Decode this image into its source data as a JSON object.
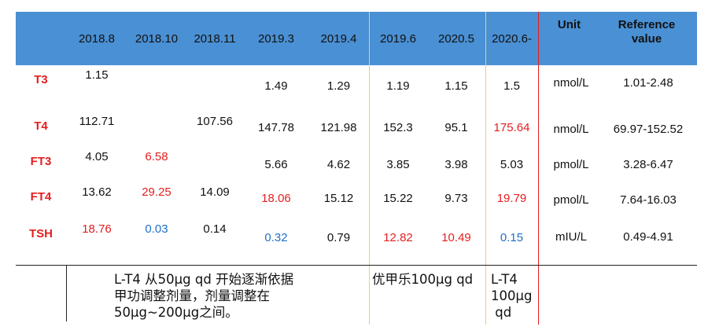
{
  "header": {
    "columns": [
      "2018.8",
      "2018.10",
      "2018.11",
      "2019.3",
      "2019.4",
      "2019.6",
      "2020.5",
      "2020.6-"
    ],
    "unit_label": "Unit",
    "reference_label": "Reference value"
  },
  "rows": [
    {
      "label": "T3",
      "values": [
        "1.15",
        "",
        "",
        "1.49",
        "1.29",
        "1.19",
        "1.15",
        "1.5"
      ],
      "unit": "nmol/L",
      "reference": "1.01-2.48"
    },
    {
      "label": "T4",
      "values": [
        "112.71",
        "",
        "107.56",
        "147.78",
        "121.98",
        "152.3",
        "95.1",
        "175.64"
      ],
      "unit": "nmol/L",
      "reference": "69.97-152.52"
    },
    {
      "label": "FT3",
      "values": [
        "4.05",
        "6.58",
        "",
        "5.66",
        "4.62",
        "3.85",
        "3.98",
        "5.03"
      ],
      "unit": "pmol/L",
      "reference": "3.28-6.47"
    },
    {
      "label": "FT4",
      "values": [
        "13.62",
        "29.25",
        "14.09",
        "18.06",
        "15.12",
        "15.22",
        "9.73",
        "19.79"
      ],
      "unit": "pmol/L",
      "reference": "7.64-16.03"
    },
    {
      "label": "TSH",
      "values": [
        "18.76",
        "0.03",
        "0.14",
        "0.32",
        "0.79",
        "12.82",
        "10.49",
        "0.15"
      ],
      "unit": "mIU/L",
      "reference": "0.49-4.91"
    }
  ],
  "value_colors": {
    "red": "#e41e1e",
    "blue": "#1f6fc9",
    "header_bg": "#4a90d4",
    "separator_orange": "#f5c87a",
    "separator_red": "#e41e1e"
  },
  "cell_highlights": [
    [
      "",
      "",
      "",
      "",
      "",
      "",
      "",
      ""
    ],
    [
      "",
      "",
      "",
      "",
      "",
      "",
      "",
      "red"
    ],
    [
      "",
      "red",
      "",
      "",
      "",
      "",
      "",
      ""
    ],
    [
      "",
      "red",
      "",
      "red",
      "",
      "",
      "",
      "red"
    ],
    [
      "red",
      "blue",
      "",
      "blue",
      "",
      "red",
      "red",
      "blue"
    ]
  ],
  "notes": {
    "treatment_1": [
      "L-T4 从50μg qd 开始逐渐依据",
      "甲功调整剂量，剂量调整在",
      "50μg~200μg之间。"
    ],
    "treatment_2": [
      "优甲乐100μg qd"
    ],
    "treatment_3": [
      "L-T4",
      "100μg",
      " qd"
    ]
  }
}
